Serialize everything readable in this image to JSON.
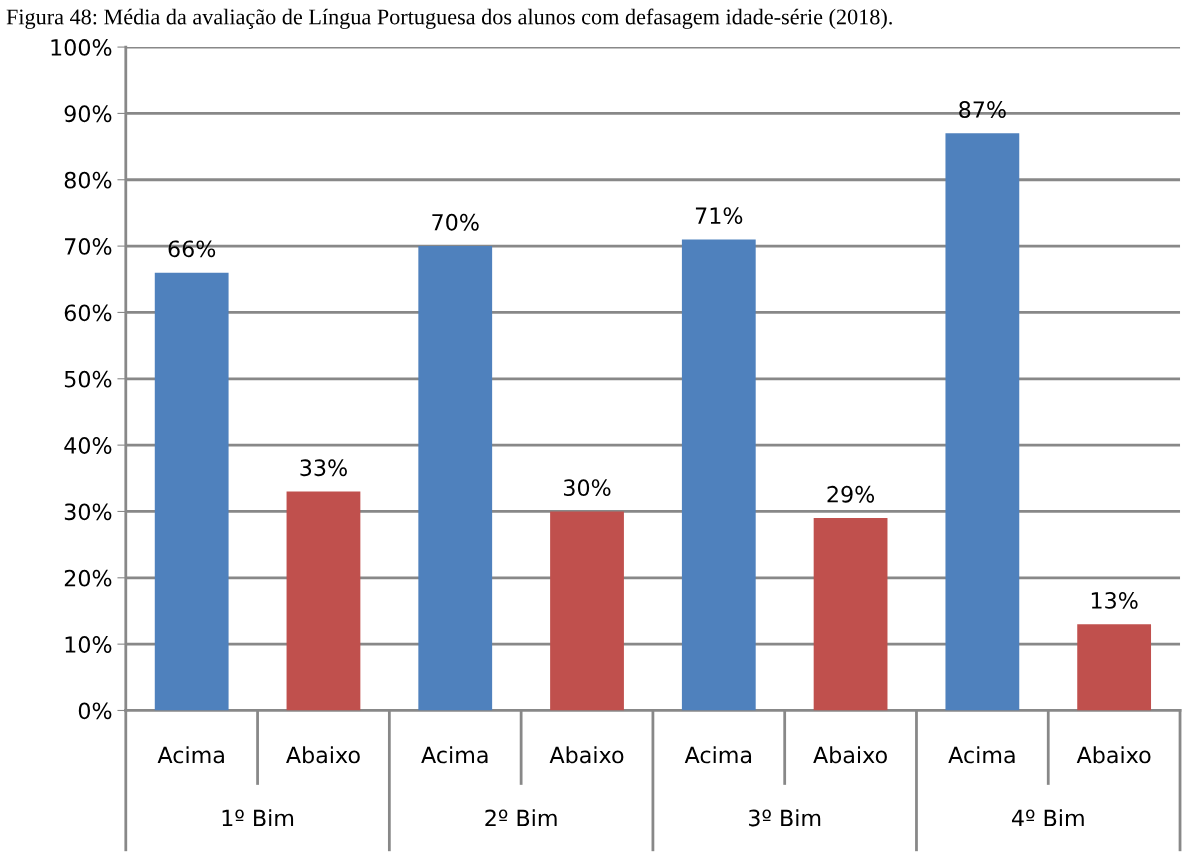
{
  "chart_data": {
    "type": "bar",
    "title": "Figura 48: Média da avaliação de Língua Portuguesa dos alunos com defasagem idade-série (2018).",
    "categories": [
      "Acima",
      "Abaixo",
      "Acima",
      "Abaixo",
      "Acima",
      "Abaixo",
      "Acima",
      "Abaixo"
    ],
    "values": [
      66,
      33,
      70,
      30,
      71,
      29,
      87,
      13
    ],
    "colors": [
      "#4f81bd",
      "#c0504d",
      "#4f81bd",
      "#c0504d",
      "#4f81bd",
      "#c0504d",
      "#4f81bd",
      "#c0504d"
    ],
    "value_labels": [
      "66%",
      "33%",
      "70%",
      "30%",
      "71%",
      "29%",
      "87%",
      "13%"
    ],
    "annotations": [
      "1º Bim",
      "2º Bim",
      "3º Bim",
      "4º Bim"
    ],
    "ylim": [
      0,
      100
    ],
    "yticks": [
      {
        "value": 0,
        "label": "0%"
      },
      {
        "value": 10,
        "label": "10%"
      },
      {
        "value": 20,
        "label": "20%"
      },
      {
        "value": 30,
        "label": "30%"
      },
      {
        "value": 40,
        "label": "40%"
      },
      {
        "value": 50,
        "label": "50%"
      },
      {
        "value": 60,
        "label": "60%"
      },
      {
        "value": 70,
        "label": "70%"
      },
      {
        "value": 80,
        "label": "80%"
      },
      {
        "value": 90,
        "label": "90%"
      },
      {
        "value": 100,
        "label": "100%"
      }
    ],
    "grid": "y",
    "legend": false
  }
}
